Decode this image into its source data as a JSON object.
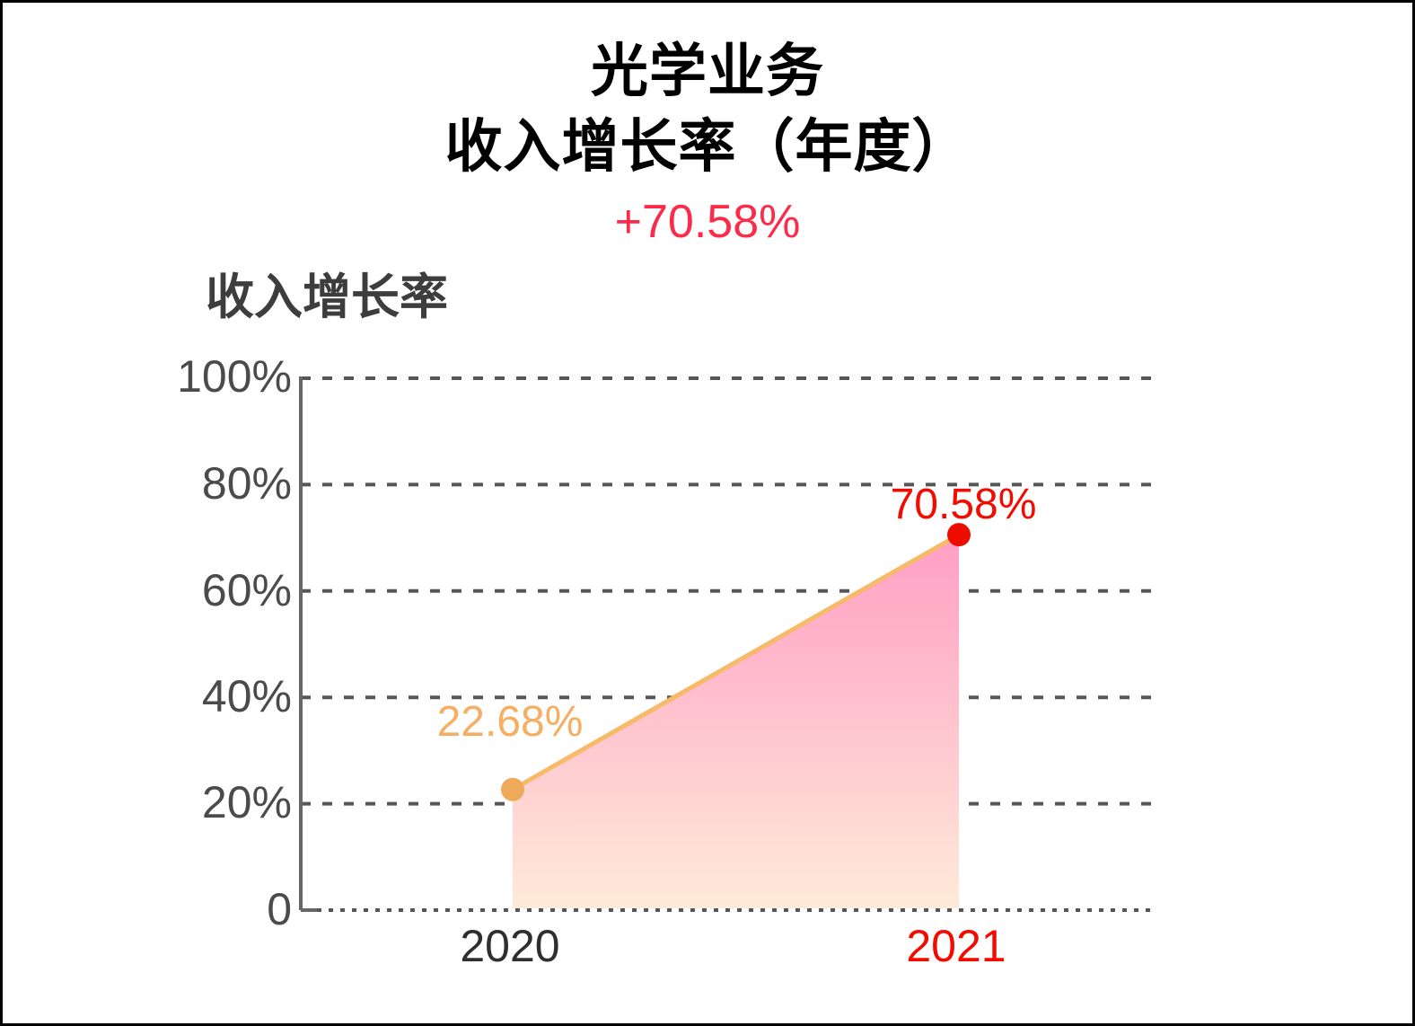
{
  "header": {
    "title_line1": "光学业务",
    "title_line2": "收入增长率（年度）",
    "change_value": "+70.58%"
  },
  "chart_data": {
    "type": "area",
    "title": "收入增长率",
    "categories": [
      "2020",
      "2021"
    ],
    "series": [
      {
        "name": "收入增长率",
        "values": [
          22.68,
          70.58
        ]
      }
    ],
    "point_labels": [
      "22.68%",
      "70.58%"
    ],
    "ylim": [
      0,
      100
    ],
    "yticks": [
      0,
      20,
      40,
      60,
      80,
      100
    ],
    "ytick_labels": [
      "0",
      "20%",
      "40%",
      "60%",
      "80%",
      "100%"
    ],
    "xlabel": "",
    "ylabel": "",
    "legend": "none",
    "grid": "horizontal-dashed, dotted-baseline",
    "colors": {
      "header_change": "#fb2b49",
      "line": "#f6ba68",
      "point_2020": "#efa95b",
      "point_2021": "#ee0b00",
      "label_2020": "#f5ae62",
      "label_2021": "#f20c00",
      "xlabel_2020": "#2f2f2f",
      "xlabel_2021": "#f20c00",
      "area_top": "#ff9ec4",
      "area_bottom": "#ffead9",
      "grid": "#565656",
      "axis": "#666666"
    }
  }
}
